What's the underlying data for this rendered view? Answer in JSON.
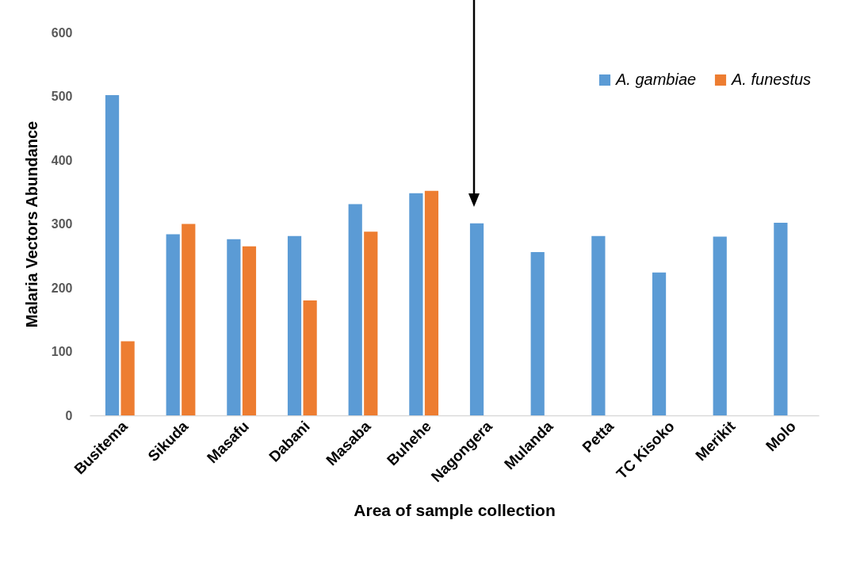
{
  "chart_data": {
    "type": "bar",
    "xlabel": "Area of sample collection",
    "ylabel": "Malaria Vectors Abundance",
    "categories": [
      "Busitema",
      "Sikuda",
      "Masafu",
      "Dabani",
      "Masaba",
      "Buhehe",
      "Nagongera",
      "Mulanda",
      "Petta",
      "TC Kisoko",
      "Merikit",
      "Molo"
    ],
    "series": [
      {
        "name": "A. gambiae",
        "color": "#5b9bd5",
        "values": [
          502,
          284,
          276,
          281,
          331,
          348,
          301,
          256,
          281,
          224,
          280,
          302
        ]
      },
      {
        "name": "A. funestus",
        "color": "#ed7d31",
        "values": [
          116,
          300,
          265,
          180,
          288,
          352,
          null,
          null,
          null,
          null,
          null,
          null
        ]
      }
    ],
    "ylim": [
      0,
      600
    ],
    "yticks": [
      0,
      100,
      200,
      300,
      400,
      500,
      600
    ],
    "grid": false,
    "legend": "top right"
  }
}
